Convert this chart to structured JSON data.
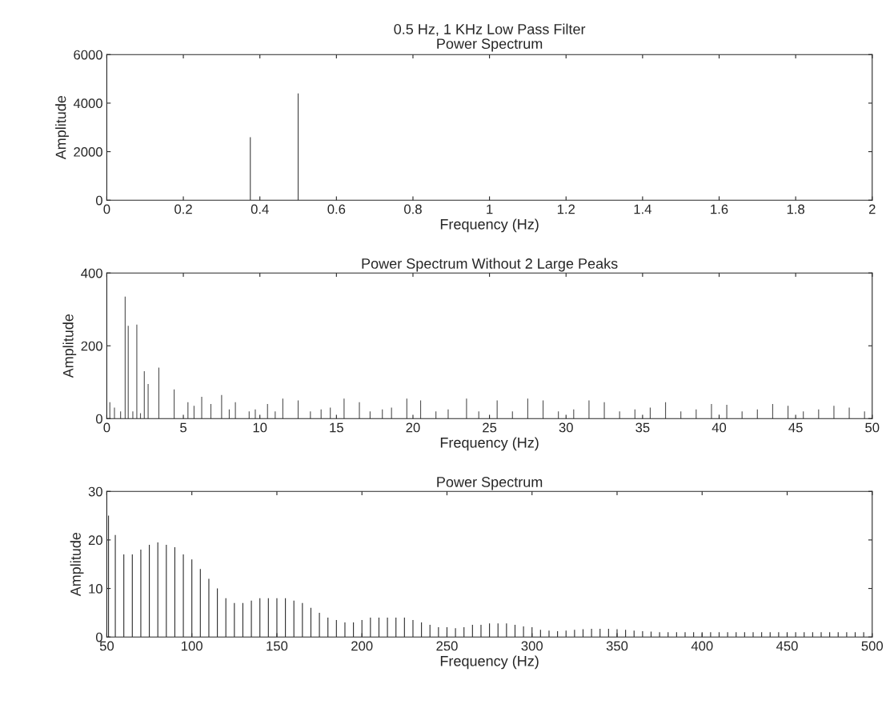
{
  "chart_data": [
    {
      "type": "bar",
      "title": "0.5 Hz, 1 KHz Low Pass Filter",
      "subtitle": "Power Spectrum",
      "xlabel": "Frequency (Hz)",
      "ylabel": "Amplitude",
      "x": [
        0.375,
        0.5
      ],
      "values": [
        2600,
        4400
      ],
      "color": "#444444",
      "xlim": [
        0,
        2
      ],
      "ylim": [
        0,
        6000
      ],
      "xticks": [
        0,
        0.2,
        0.4,
        0.6,
        0.8,
        1,
        1.2,
        1.4,
        1.6,
        1.8,
        2
      ],
      "yticks": [
        0,
        2000,
        4000,
        6000
      ],
      "grid": false
    },
    {
      "type": "bar",
      "title": "Power Spectrum Without 2 Large Peaks",
      "xlabel": "Frequency (Hz)",
      "ylabel": "Amplitude",
      "x": [
        0.2,
        0.5,
        0.9,
        1.2,
        1.4,
        1.7,
        1.96,
        2.2,
        2.45,
        2.7,
        3.4,
        4.4,
        5.3,
        5.7,
        6.2,
        6.8,
        7.5,
        8.0,
        8.4,
        9.3,
        9.7,
        10.5,
        11.0,
        11.5,
        12.5,
        13.3,
        14.0,
        14.6,
        15.5,
        16.5,
        17.2,
        18.0,
        18.6,
        19.6,
        20.5,
        21.5,
        22.3,
        23.5,
        24.3,
        25.5,
        26.5,
        27.5,
        28.5,
        29.5,
        30.5,
        31.5,
        32.5,
        33.5,
        34.5,
        35.5,
        36.5,
        37.5,
        38.5,
        39.5,
        40.5,
        41.5,
        42.5,
        43.5,
        44.5,
        45.5,
        46.5,
        47.5,
        48.5,
        49.5
      ],
      "values": [
        45,
        30,
        20,
        335,
        255,
        20,
        258,
        15,
        130,
        95,
        140,
        80,
        45,
        35,
        60,
        40,
        65,
        25,
        45,
        20,
        25,
        40,
        20,
        55,
        50,
        20,
        25,
        30,
        55,
        45,
        20,
        25,
        30,
        55,
        50,
        20,
        25,
        55,
        20,
        50,
        20,
        55,
        50,
        20,
        25,
        50,
        45,
        20,
        25,
        30,
        45,
        20,
        25,
        40,
        38,
        20,
        25,
        40,
        35,
        20,
        25,
        35,
        30,
        20
      ],
      "color": "#555555",
      "xlim": [
        0,
        50
      ],
      "ylim": [
        0,
        400
      ],
      "xticks": [
        0,
        5,
        10,
        15,
        20,
        25,
        30,
        35,
        40,
        45,
        50
      ],
      "yticks": [
        0,
        200,
        400
      ],
      "grid": false
    },
    {
      "type": "bar",
      "title": "Power Spectrum",
      "xlabel": "Frequency (Hz)",
      "ylabel": "Amplitude",
      "x": [
        51,
        55,
        60,
        65,
        70,
        75,
        80,
        85,
        90,
        95,
        100,
        105,
        110,
        115,
        120,
        125,
        130,
        135,
        140,
        145,
        150,
        155,
        160,
        165,
        170,
        175,
        180,
        185,
        190,
        195,
        200,
        205,
        210,
        215,
        220,
        225,
        230,
        235,
        240,
        245,
        250,
        255,
        260,
        265,
        270,
        275,
        280,
        285,
        290,
        295,
        300,
        305,
        310,
        315,
        320,
        325,
        330,
        335,
        340,
        345,
        350,
        355,
        360,
        365,
        370,
        375,
        380,
        385,
        390,
        395,
        400,
        405,
        410,
        415,
        420,
        425,
        430,
        435,
        440,
        445,
        450,
        455,
        460,
        465,
        470,
        475,
        480,
        485,
        490,
        495
      ],
      "values": [
        25,
        21,
        17,
        17,
        18,
        19,
        19.5,
        19,
        18.5,
        17,
        16,
        14,
        12,
        10,
        8,
        7,
        7,
        7.5,
        8,
        8,
        8,
        8,
        7.5,
        7,
        6,
        5,
        4,
        3.5,
        3,
        3,
        3.5,
        4,
        4,
        4,
        4,
        4,
        3.5,
        3,
        2.5,
        2,
        2,
        1.8,
        2,
        2.5,
        2.5,
        2.8,
        2.8,
        2.8,
        2.5,
        2.2,
        2,
        1.5,
        1.3,
        1.2,
        1.3,
        1.5,
        1.6,
        1.7,
        1.7,
        1.7,
        1.6,
        1.5,
        1.3,
        1.2,
        1.1,
        1,
        1,
        1,
        1,
        1,
        1,
        1,
        1,
        1,
        1,
        1,
        1,
        1,
        1,
        1,
        1,
        1,
        1,
        1,
        1,
        1,
        1,
        1,
        1,
        1
      ],
      "color": "#333333",
      "xlim": [
        50,
        500
      ],
      "ylim": [
        0,
        30
      ],
      "xticks": [
        50,
        100,
        150,
        200,
        250,
        300,
        350,
        400,
        450,
        500
      ],
      "yticks": [
        0,
        10,
        20,
        30
      ],
      "grid": false
    }
  ]
}
